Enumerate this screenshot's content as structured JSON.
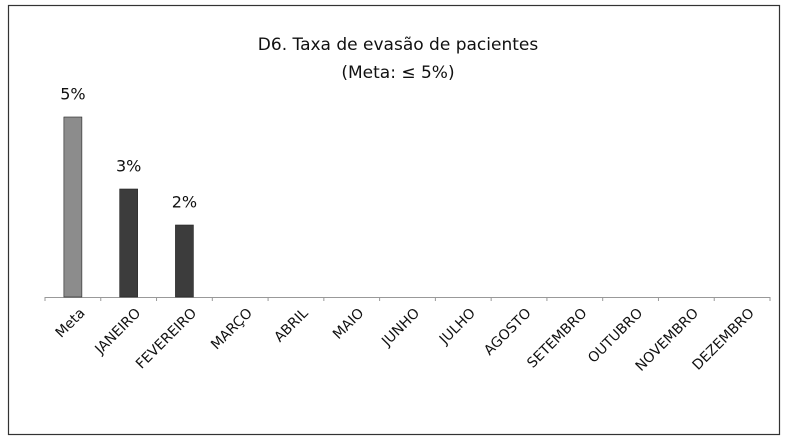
{
  "chart_data": {
    "type": "bar",
    "title": "D6. Taxa de evasão de pacientes",
    "subtitle": "(Meta: ≤ 5%)",
    "categories": [
      "Meta",
      "JANEIRO",
      "FEVEREIRO",
      "MARÇO",
      "ABRIL",
      "MAIO",
      "JUNHO",
      "JULHO",
      "AGOSTO",
      "SETEMBRO",
      "OUTUBRO",
      "NOVEMBRO",
      "DEZEMBRO"
    ],
    "values": [
      5,
      3,
      2,
      null,
      null,
      null,
      null,
      null,
      null,
      null,
      null,
      null,
      null
    ],
    "value_labels": [
      "5%",
      "3%",
      "2%",
      null,
      null,
      null,
      null,
      null,
      null,
      null,
      null,
      null,
      null
    ],
    "colors": [
      "#8c8c8c",
      "#3c3c3c",
      "#3c3c3c",
      null,
      null,
      null,
      null,
      null,
      null,
      null,
      null,
      null,
      null
    ]
  }
}
